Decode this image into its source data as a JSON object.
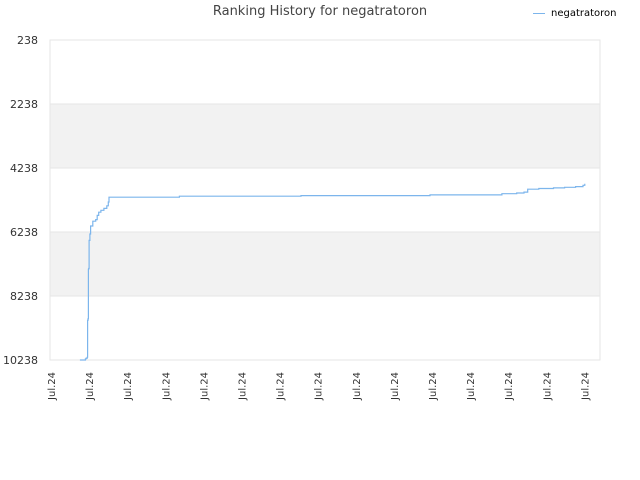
{
  "chart_data": {
    "type": "line",
    "title": "Ranking History for negatratoron",
    "xlabel": "",
    "ylabel": "",
    "legend": {
      "position": "top-right",
      "entries": [
        "negatratoron"
      ]
    },
    "y_axis": {
      "reversed": true,
      "ylim": [
        238,
        10238
      ],
      "ticks": [
        238,
        2238,
        4238,
        6238,
        8238,
        10238
      ]
    },
    "x_tick_labels": [
      "Jul.24",
      "Jul.24",
      "Jul.24",
      "Jul.24",
      "Jul.24",
      "Jul.24",
      "Jul.24",
      "Jul.24",
      "Jul.24",
      "Jul.24",
      "Jul.24",
      "Jul.24",
      "Jul.24",
      "Jul.24",
      "Jul.24"
    ],
    "grid": true,
    "band_colors": [
      "#f2f2f2",
      "#ffffff"
    ],
    "colors": {
      "series": "#7cb5ec",
      "grid": "#e6e6e6",
      "axis_text": "#333333"
    },
    "x_range": [
      0,
      14
    ],
    "series": [
      {
        "name": "negatratoron",
        "points": [
          [
            0.35,
            10238
          ],
          [
            0.5,
            10200
          ],
          [
            0.52,
            10180
          ],
          [
            0.55,
            10150
          ],
          [
            0.56,
            9000
          ],
          [
            0.57,
            8950
          ],
          [
            0.58,
            7400
          ],
          [
            0.59,
            7380
          ],
          [
            0.6,
            6500
          ],
          [
            0.62,
            6300
          ],
          [
            0.64,
            6050
          ],
          [
            0.7,
            5900
          ],
          [
            0.74,
            5900
          ],
          [
            0.78,
            5850
          ],
          [
            0.82,
            5720
          ],
          [
            0.86,
            5620
          ],
          [
            0.92,
            5560
          ],
          [
            1.0,
            5500
          ],
          [
            1.08,
            5420
          ],
          [
            1.12,
            5300
          ],
          [
            1.14,
            5150
          ],
          [
            1.2,
            5150
          ],
          [
            2.0,
            5150
          ],
          [
            3.0,
            5150
          ],
          [
            3.05,
            5120
          ],
          [
            4.0,
            5120
          ],
          [
            5.0,
            5120
          ],
          [
            6.3,
            5120
          ],
          [
            6.35,
            5100
          ],
          [
            8.0,
            5100
          ],
          [
            9.0,
            5100
          ],
          [
            9.8,
            5100
          ],
          [
            9.85,
            5080
          ],
          [
            11.0,
            5080
          ],
          [
            11.7,
            5080
          ],
          [
            11.8,
            5040
          ],
          [
            12.2,
            5020
          ],
          [
            12.4,
            4990
          ],
          [
            12.5,
            4900
          ],
          [
            12.8,
            4880
          ],
          [
            13.0,
            4880
          ],
          [
            13.2,
            4860
          ],
          [
            13.5,
            4840
          ],
          [
            13.8,
            4820
          ],
          [
            14.0,
            4780
          ],
          [
            14.05,
            4730
          ]
        ]
      }
    ]
  }
}
